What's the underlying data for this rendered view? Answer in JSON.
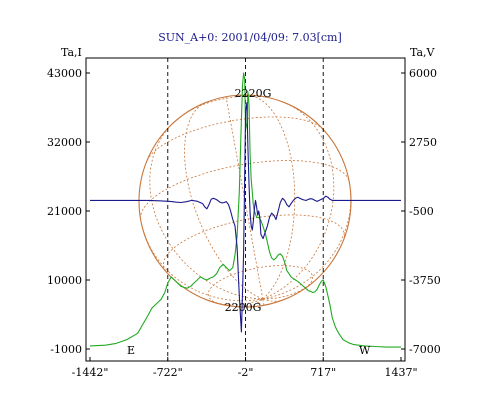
{
  "chart_data": {
    "type": "line",
    "title": "SUN_A+0: 2001/04/09: 7.03[cm]",
    "left_axis_label": "Ta,I",
    "right_axis_label": "Ta,V",
    "x_ticks": [
      "-1442\"",
      "-722\"",
      "-2\"",
      "717\"",
      "1437\""
    ],
    "x_tick_values": [
      -1442,
      -722,
      -2,
      717,
      1437
    ],
    "xlim": [
      -1442,
      1437
    ],
    "left_ticks": [
      "43000",
      "32000",
      "21000",
      "10000",
      "-1000"
    ],
    "left_tick_values": [
      43000,
      32000,
      21000,
      10000,
      -1000
    ],
    "ylim_left": [
      -1000,
      43000
    ],
    "right_ticks": [
      "6000",
      "2750",
      "-500",
      "-3750",
      "-7000"
    ],
    "right_tick_values": [
      6000,
      2750,
      -500,
      -3750,
      -7000
    ],
    "ylim_right": [
      -7000,
      6000
    ],
    "limb_labels": {
      "east": "E",
      "west": "W"
    },
    "limb_x": [
      -722,
      717
    ],
    "center_x": -2,
    "field_labels": {
      "top": "2220G",
      "bottom": "2200G"
    },
    "colors": {
      "intensity": "#22aa22",
      "polarization": "#1a1a8c",
      "grid_sphere": "#c8763a",
      "title": "#1a1a8c"
    },
    "series": [
      {
        "axis": "left",
        "color": "#22aa22",
        "x": [
          -1442,
          -1300,
          -1200,
          -1100,
          -1000,
          -950,
          -900,
          -870,
          -840,
          -810,
          -780,
          -750,
          -722,
          -690,
          -660,
          -630,
          -600,
          -570,
          -540,
          -510,
          -480,
          -450,
          -420,
          -390,
          -360,
          -330,
          -300,
          -270,
          -240,
          -210,
          -180,
          -150,
          -120,
          -100,
          -80,
          -60,
          -45,
          -30,
          -20,
          -10,
          -2,
          10,
          20,
          30,
          40,
          50,
          60,
          70,
          80,
          90,
          100,
          120,
          140,
          160,
          180,
          200,
          220,
          240,
          260,
          280,
          300,
          320,
          340,
          360,
          380,
          400,
          420,
          440,
          460,
          480,
          500,
          520,
          540,
          560,
          580,
          600,
          620,
          640,
          660,
          680,
          700,
          717,
          740,
          760,
          780,
          800,
          830,
          860,
          900,
          950,
          1000,
          1100,
          1200,
          1300,
          1437
        ],
        "values": [
          -500,
          -400,
          -100,
          500,
          1500,
          3000,
          4500,
          5500,
          6000,
          6500,
          7000,
          8000,
          9500,
          10500,
          10000,
          9500,
          9000,
          8800,
          8700,
          9000,
          9500,
          10000,
          10500,
          10200,
          10000,
          10300,
          10500,
          11000,
          12000,
          12500,
          12000,
          11500,
          12000,
          14000,
          17000,
          24000,
          33000,
          41000,
          43000,
          42000,
          34000,
          35000,
          40000,
          38000,
          30000,
          26000,
          24000,
          22000,
          21000,
          20500,
          20000,
          20000,
          19500,
          18500,
          17500,
          16000,
          14500,
          13500,
          13200,
          13500,
          14000,
          14200,
          13800,
          12800,
          11500,
          11000,
          10500,
          10200,
          10000,
          9800,
          9500,
          9200,
          8900,
          8600,
          8300,
          8200,
          8000,
          8100,
          8500,
          9200,
          9800,
          10000,
          9000,
          7500,
          6000,
          4000,
          2500,
          1500,
          500,
          0,
          -300,
          -500,
          -600,
          -700,
          -700
        ]
      },
      {
        "axis": "right",
        "color": "#1a1a8c",
        "x": [
          -1442,
          -1300,
          -1200,
          -1100,
          -1000,
          -900,
          -800,
          -700,
          -650,
          -600,
          -550,
          -500,
          -450,
          -400,
          -380,
          -360,
          -340,
          -320,
          -300,
          -280,
          -260,
          -240,
          -220,
          -200,
          -180,
          -160,
          -140,
          -120,
          -100,
          -80,
          -60,
          -40,
          -20,
          -2,
          10,
          20,
          30,
          40,
          50,
          60,
          70,
          80,
          90,
          100,
          110,
          120,
          130,
          140,
          160,
          180,
          200,
          220,
          240,
          260,
          280,
          300,
          320,
          340,
          360,
          380,
          400,
          420,
          440,
          460,
          480,
          500,
          520,
          540,
          560,
          580,
          600,
          620,
          640,
          660,
          680,
          700,
          720,
          740,
          760,
          780,
          800,
          850,
          900,
          1000,
          1100,
          1200,
          1300,
          1437
        ],
        "values": [
          0,
          0,
          0,
          0,
          0,
          0,
          -20,
          -50,
          -80,
          -100,
          -60,
          0,
          -40,
          -150,
          -300,
          -400,
          -200,
          50,
          100,
          60,
          0,
          -80,
          -120,
          -100,
          -60,
          -200,
          -500,
          -900,
          -1200,
          -2200,
          -4500,
          -6200,
          -2500,
          4200,
          4600,
          2500,
          800,
          -600,
          -1200,
          -1400,
          -1000,
          -400,
          0,
          -300,
          -700,
          -500,
          -800,
          -1600,
          -1800,
          -1500,
          -1200,
          -800,
          -600,
          -700,
          -900,
          -500,
          -100,
          100,
          0,
          -200,
          -300,
          -150,
          0,
          100,
          150,
          100,
          50,
          20,
          0,
          50,
          80,
          60,
          0,
          -50,
          0,
          50,
          100,
          200,
          150,
          50,
          0,
          0,
          0,
          0,
          0,
          0,
          0,
          0
        ]
      }
    ]
  }
}
